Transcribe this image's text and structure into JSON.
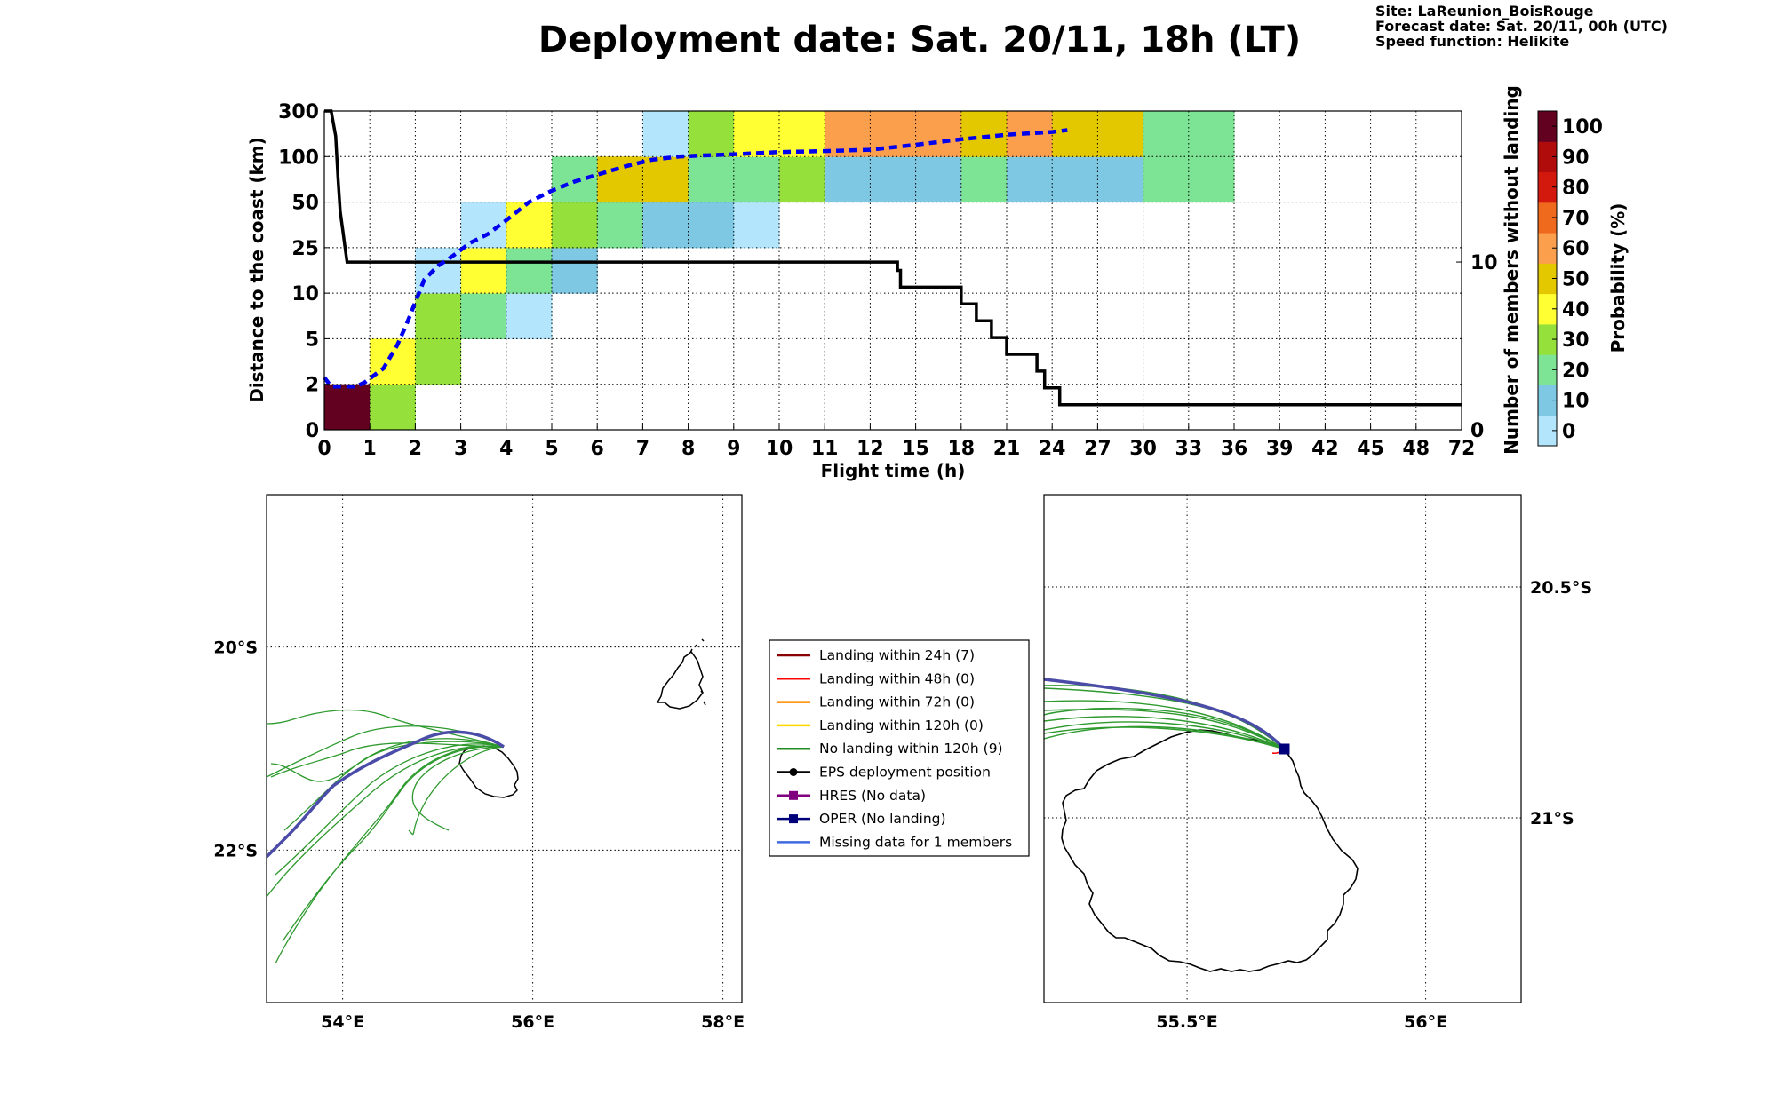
{
  "header": {
    "title": "Deployment date: Sat. 20/11, 18h (LT)",
    "site": "Site: LaReunion_BoisRouge",
    "forecast": "Forecast date: Sat. 20/11, 00h (UTC)",
    "speed": "Speed function: Helikite"
  },
  "chart_data": [
    {
      "type": "heatmap",
      "xlabel": "Flight time (h)",
      "ylabel": "Distance to the coast (km)",
      "y2label": "Number of members without landing",
      "x_ticks": [
        "0",
        "1",
        "2",
        "3",
        "4",
        "5",
        "6",
        "7",
        "8",
        "9",
        "10",
        "11",
        "12",
        "15",
        "18",
        "21",
        "24",
        "27",
        "30",
        "33",
        "36",
        "39",
        "42",
        "45",
        "48",
        "72"
      ],
      "y_ticks": [
        "0",
        "2",
        "5",
        "10",
        "25",
        "50",
        "100",
        "300"
      ],
      "y2_ticks": [
        "0",
        "10"
      ],
      "y2_range": [
        0,
        19
      ],
      "colorbar": {
        "label": "Probability (%)",
        "ticks": [
          "0",
          "10",
          "20",
          "30",
          "40",
          "50",
          "60",
          "70",
          "80",
          "90",
          "100"
        ],
        "colors": [
          "#b3e5fc",
          "#7ec8e3",
          "#7ee495",
          "#96e03c",
          "#ffff33",
          "#e3c800",
          "#fc9f4d",
          "#f06a1e",
          "#d3180e",
          "#b10c0c",
          "#620220"
        ]
      },
      "cells": [
        {
          "x": 0,
          "y": 0,
          "p": 100
        },
        {
          "x": 1,
          "y": 0,
          "p": 30
        },
        {
          "x": 1,
          "y": 1,
          "p": 40
        },
        {
          "x": 2,
          "y": 1,
          "p": 30
        },
        {
          "x": 2,
          "y": 2,
          "p": 30
        },
        {
          "x": 3,
          "y": 2,
          "p": 20
        },
        {
          "x": 4,
          "y": 2,
          "p": 0
        },
        {
          "x": 2,
          "y": 3,
          "p": 0
        },
        {
          "x": 3,
          "y": 3,
          "p": 40
        },
        {
          "x": 4,
          "y": 3,
          "p": 20
        },
        {
          "x": 5,
          "y": 3,
          "p": 10
        },
        {
          "x": 3,
          "y": 4,
          "p": 0
        },
        {
          "x": 4,
          "y": 4,
          "p": 40
        },
        {
          "x": 5,
          "y": 4,
          "p": 30
        },
        {
          "x": 6,
          "y": 4,
          "p": 20
        },
        {
          "x": 7,
          "y": 4,
          "p": 10
        },
        {
          "x": 8,
          "y": 4,
          "p": 10
        },
        {
          "x": 9,
          "y": 4,
          "p": 0
        },
        {
          "x": 5,
          "y": 5,
          "p": 20
        },
        {
          "x": 6,
          "y": 5,
          "p": 50
        },
        {
          "x": 7,
          "y": 5,
          "p": 50
        },
        {
          "x": 8,
          "y": 5,
          "p": 20
        },
        {
          "x": 9,
          "y": 5,
          "p": 20
        },
        {
          "x": 10,
          "y": 5,
          "p": 30
        },
        {
          "x": 11,
          "y": 5,
          "p": 10
        },
        {
          "x": 12,
          "y": 5,
          "p": 10
        },
        {
          "x": 13,
          "y": 5,
          "p": 10
        },
        {
          "x": 14,
          "y": 5,
          "p": 20
        },
        {
          "x": 15,
          "y": 5,
          "p": 10
        },
        {
          "x": 16,
          "y": 5,
          "p": 10
        },
        {
          "x": 17,
          "y": 5,
          "p": 10
        },
        {
          "x": 18,
          "y": 5,
          "p": 20
        },
        {
          "x": 19,
          "y": 5,
          "p": 20
        },
        {
          "x": 7,
          "y": 6,
          "p": 0
        },
        {
          "x": 8,
          "y": 6,
          "p": 30
        },
        {
          "x": 9,
          "y": 6,
          "p": 40
        },
        {
          "x": 10,
          "y": 6,
          "p": 40
        },
        {
          "x": 11,
          "y": 6,
          "p": 60
        },
        {
          "x": 12,
          "y": 6,
          "p": 60
        },
        {
          "x": 13,
          "y": 6,
          "p": 60
        },
        {
          "x": 14,
          "y": 6,
          "p": 50
        },
        {
          "x": 15,
          "y": 6,
          "p": 60
        },
        {
          "x": 16,
          "y": 6,
          "p": 50
        },
        {
          "x": 17,
          "y": 6,
          "p": 50
        },
        {
          "x": 18,
          "y": 6,
          "p": 20
        },
        {
          "x": 19,
          "y": 6,
          "p": 20
        }
      ],
      "series": [
        {
          "style": "black-solid-step",
          "x": [
            0,
            0.15,
            0.25,
            0.3,
            0.35,
            0.4,
            0.45,
            0.5,
            13.8,
            13.8,
            14.0,
            14.0,
            18,
            18,
            19,
            19,
            20,
            20,
            21,
            21,
            23,
            23,
            23.5,
            23.5,
            24.5,
            24.5,
            72
          ],
          "y": [
            19,
            19,
            17.5,
            15,
            13,
            12,
            11,
            10,
            10,
            9.5,
            9.5,
            8.5,
            8.5,
            7.5,
            7.5,
            6.5,
            6.5,
            5.5,
            5.5,
            4.5,
            4.5,
            3.5,
            3.5,
            2.5,
            2.5,
            1.5,
            1.5
          ]
        },
        {
          "style": "blue-dashed-median",
          "x": [
            0,
            0.15,
            0.3,
            0.5,
            0.7,
            0.9,
            1.3,
            1.6,
            1.8,
            2.0,
            2.2,
            2.5,
            2.8,
            3.2,
            3.6,
            4.0,
            4.5,
            5.0,
            5.5,
            6.0,
            6.6,
            7.2,
            7.8,
            8.2,
            9.0,
            10.0,
            11.0,
            12.0,
            15.0,
            18.0,
            21.0,
            24.0,
            25.0
          ],
          "y": [
            1.15,
            0.95,
            0.95,
            0.95,
            0.95,
            1.05,
            1.35,
            1.85,
            2.3,
            2.8,
            3.3,
            3.6,
            3.8,
            4.1,
            4.3,
            4.6,
            5.0,
            5.25,
            5.45,
            5.6,
            5.78,
            5.93,
            6.0,
            6.02,
            6.05,
            6.1,
            6.12,
            6.15,
            6.26,
            6.38,
            6.48,
            6.54,
            6.58
          ]
        }
      ]
    },
    {
      "type": "scatter",
      "map": "left",
      "x_ticks": [
        "54°E",
        "56°E",
        "58°E"
      ],
      "y_ticks": [
        "20°S",
        "22°S"
      ],
      "xlim": [
        53.2,
        58.2
      ],
      "ylim": [
        -23.5,
        -18.5
      ]
    },
    {
      "type": "scatter",
      "map": "right",
      "x_ticks": [
        "55.5°E",
        "56°E"
      ],
      "y_ticks": [
        "20.5°S",
        "21°S"
      ],
      "xlim": [
        55.2,
        56.2
      ],
      "ylim": [
        -21.4,
        -20.3
      ]
    }
  ],
  "legend": {
    "items": [
      {
        "label": "Landing within 24h (7)",
        "color": "#8b0000",
        "marker": "none"
      },
      {
        "label": "Landing within 48h (0)",
        "color": "#ff0000",
        "marker": "none"
      },
      {
        "label": "Landing within 72h (0)",
        "color": "#ff8c00",
        "marker": "none"
      },
      {
        "label": "Landing within 120h (0)",
        "color": "#ffd700",
        "marker": "none"
      },
      {
        "label": "No landing within 120h (9)",
        "color": "#228b22",
        "marker": "none"
      },
      {
        "label": "EPS deployment position",
        "color": "#000000",
        "marker": "circle"
      },
      {
        "label": "HRES (No data)",
        "color": "#800080",
        "marker": "square"
      },
      {
        "label": "OPER (No landing)",
        "color": "#00007a",
        "marker": "square"
      },
      {
        "label": "Missing data for 1 members",
        "color": "#4169e1",
        "marker": "none"
      }
    ]
  }
}
